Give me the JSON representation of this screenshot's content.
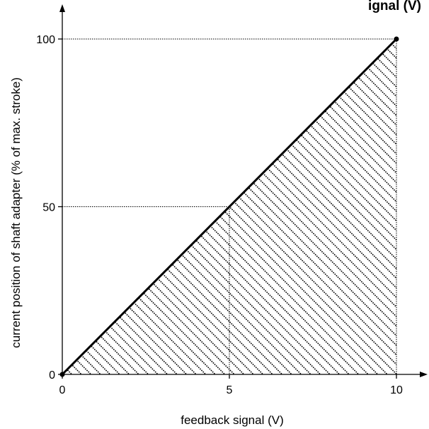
{
  "chart_data": {
    "type": "line",
    "title_fragment": "ignal (V)",
    "xlabel": "feedback signal (V)",
    "ylabel": "current position of shaft adapter (% of max. stroke)",
    "x_ticks": [
      "0",
      "5",
      "10"
    ],
    "y_ticks": [
      "0",
      "50",
      "100"
    ],
    "xlim": [
      0,
      10
    ],
    "ylim": [
      0,
      100
    ],
    "series": [
      {
        "x": [
          0,
          10
        ],
        "y": [
          0,
          100
        ]
      }
    ],
    "reference_points": [
      {
        "x": 5,
        "y": 50
      },
      {
        "x": 10,
        "y": 100
      }
    ],
    "shaded_region": "hatched area below line between x = 0 and x = 10",
    "grid": false
  }
}
